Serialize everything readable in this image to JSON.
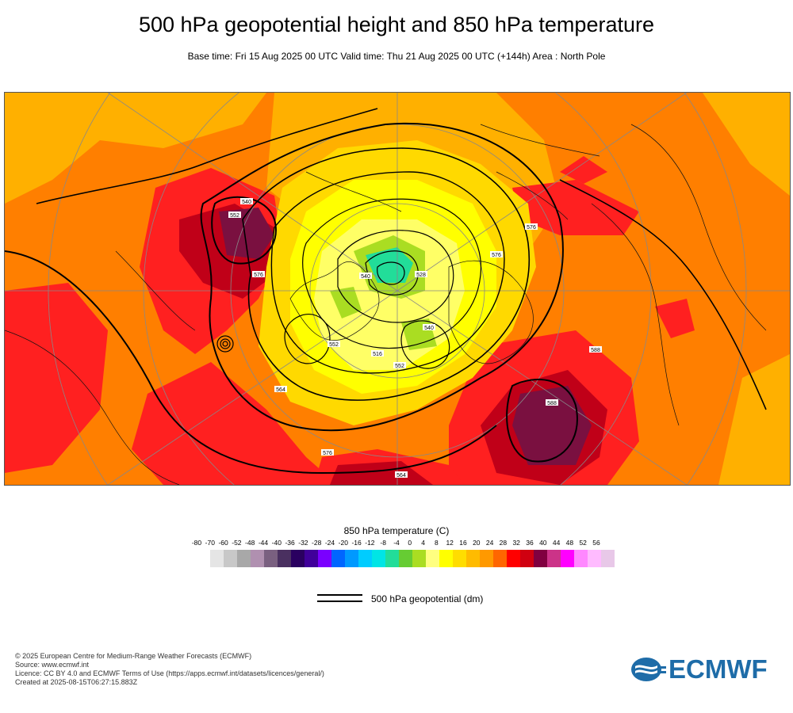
{
  "header": {
    "title": "500 hPa geopotential height and 850 hPa temperature",
    "subtitle": "Base time: Fri 15 Aug 2025 00 UTC Valid time: Thu 21 Aug 2025 00 UTC (+144h) Area : North Pole"
  },
  "map": {
    "projection": "polar stereographic",
    "area": "North Pole",
    "contour_labels": [
      "576",
      "552",
      "540",
      "528",
      "516",
      "564",
      "588",
      "576",
      "552",
      "540",
      "588",
      "576",
      "564",
      "576",
      "552",
      "540"
    ],
    "field_colors": {
      "warm": "#ff7f00",
      "hot": "#ff2020",
      "very_hot": "#c00018",
      "extreme": "#7a1040",
      "mild": "#ffb000",
      "cool": "#ffd900",
      "cold": "#ffff66",
      "very_cold": "#c0e020",
      "polar": "#2ecc88",
      "land_outline": "#000000",
      "contour": "#000000"
    }
  },
  "legend": {
    "title": "850 hPa temperature (C)",
    "ticks": [
      "-80",
      "-70",
      "-60",
      "-52",
      "-48",
      "-44",
      "-40",
      "-36",
      "-32",
      "-28",
      "-24",
      "-20",
      "-16",
      "-12",
      "-8",
      "-4",
      "0",
      "4",
      "8",
      "12",
      "16",
      "20",
      "24",
      "28",
      "32",
      "36",
      "40",
      "44",
      "48",
      "52",
      "56"
    ],
    "colors": [
      "#e5e5e5",
      "#c8c8c8",
      "#a8a8a8",
      "#b090b0",
      "#7a6080",
      "#4a3060",
      "#2a0060",
      "#40009a",
      "#7a00ff",
      "#0066ff",
      "#0099ff",
      "#00ccff",
      "#00e5e5",
      "#22dd99",
      "#66cc33",
      "#aadd22",
      "#ffff80",
      "#ffff00",
      "#ffdd00",
      "#ffbb00",
      "#ff9900",
      "#ff6600",
      "#ff0000",
      "#d00010",
      "#800040",
      "#cc3388",
      "#ff00ff",
      "#ff88ff",
      "#ffbbff",
      "#e8c8e8"
    ],
    "contour_label": "500 hPa geopotential (dm)"
  },
  "footer": {
    "line1": "© 2025 European Centre for Medium-Range Weather Forecasts (ECMWF)",
    "line2": "Source: www.ecmwf.int",
    "line3": "Licence: CC BY 4.0 and ECMWF Terms of Use (https://apps.ecmwf.int/datasets/licences/general/)",
    "line4": "Created at 2025-08-15T06:27:15.883Z"
  },
  "logo": {
    "text": "ECMWF",
    "color": "#1e6ca8"
  }
}
